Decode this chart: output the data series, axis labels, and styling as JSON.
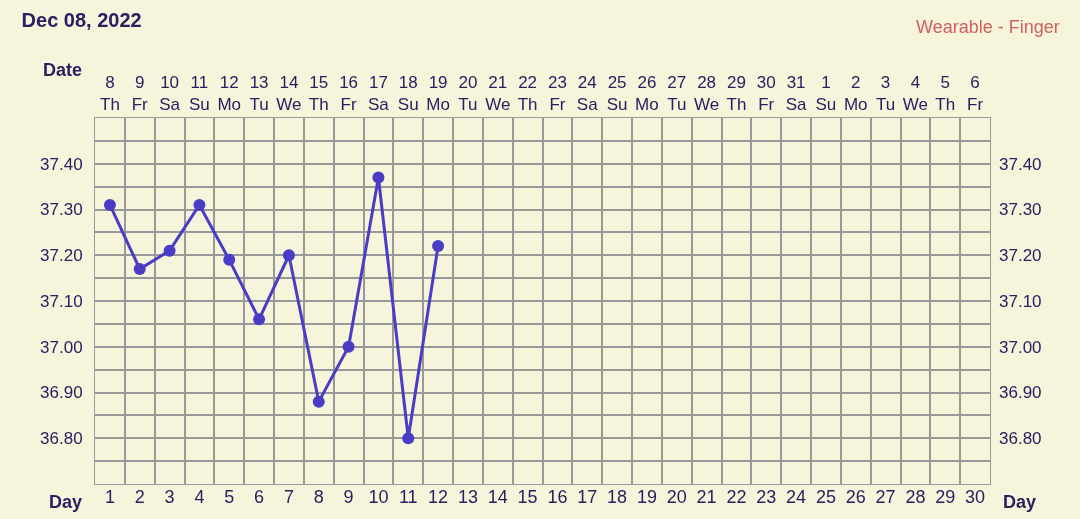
{
  "chart_data": {
    "type": "line",
    "title": "Dec 08, 2022",
    "annotations": [
      "Wearable - Finger",
      "Date",
      "Day",
      "Day"
    ],
    "categories": [
      "8\nTh",
      "9\nFr",
      "10\nSa",
      "11\nSu",
      "12\nMo",
      "13\nTu",
      "14\nWe",
      "15\nTh",
      "16\nFr",
      "17\nSa",
      "18\nSu",
      "19\nMo",
      "20\nTu",
      "21\nWe",
      "22\nTh",
      "23\nFr",
      "24\nSa",
      "25\nSu",
      "26\nMo",
      "27\nTu",
      "28\nWe",
      "29\nTh",
      "30\nFr",
      "31\nSa",
      "1\nSu",
      "2\nMo",
      "3\nTu",
      "4\nWe",
      "5\nTh",
      "6\nFr"
    ],
    "series": [
      {
        "color": "#4a3cc4",
        "values": [
          37.31,
          37.17,
          37.21,
          37.31,
          37.19,
          37.06,
          37.2,
          36.88,
          37.0,
          37.37,
          36.8,
          37.22,
          null,
          null,
          null,
          null,
          null,
          null,
          null,
          null,
          null,
          null,
          null,
          null,
          null,
          null,
          null,
          null,
          null,
          null
        ]
      }
    ],
    "x2lim": [
      0.5,
      30.5
    ],
    "x2ticks": [
      1,
      2,
      3,
      4,
      5,
      6,
      7,
      8,
      9,
      10,
      11,
      12,
      13,
      14,
      15,
      16,
      17,
      18,
      19,
      20,
      21,
      22,
      23,
      24,
      25,
      26,
      27,
      28,
      29,
      30
    ],
    "ylim": [
      36.7,
      37.5
    ],
    "yticks": [
      {
        "value": 36.75,
        "label": null
      },
      {
        "value": 36.8,
        "label": "36.80"
      },
      {
        "value": 36.85,
        "label": null
      },
      {
        "value": 36.9,
        "label": "36.90"
      },
      {
        "value": 36.95,
        "label": null
      },
      {
        "value": 37.0,
        "label": "37.00"
      },
      {
        "value": 37.05,
        "label": null
      },
      {
        "value": 37.1,
        "label": "37.10"
      },
      {
        "value": 37.15,
        "label": null
      },
      {
        "value": 37.2,
        "label": "37.20"
      },
      {
        "value": 37.25,
        "label": null
      },
      {
        "value": 37.3,
        "label": "37.30"
      },
      {
        "value": 37.35,
        "label": null
      },
      {
        "value": 37.4,
        "label": "37.40"
      },
      {
        "value": 37.45,
        "label": null
      }
    ],
    "y2lim": [
      36.7,
      37.5
    ],
    "y2ticks": [
      {
        "value": 36.75,
        "label": null
      },
      {
        "value": 36.8,
        "label": "36.80"
      },
      {
        "value": 36.85,
        "label": null
      },
      {
        "value": 36.9,
        "label": "36.90"
      },
      {
        "value": 36.95,
        "label": null
      },
      {
        "value": 37.0,
        "label": "37.00"
      },
      {
        "value": 37.05,
        "label": null
      },
      {
        "value": 37.1,
        "label": "37.10"
      },
      {
        "value": 37.15,
        "label": null
      },
      {
        "value": 37.2,
        "label": "37.20"
      },
      {
        "value": 37.25,
        "label": null
      },
      {
        "value": 37.3,
        "label": "37.30"
      },
      {
        "value": 37.35,
        "label": null
      },
      {
        "value": 37.4,
        "label": "37.40"
      },
      {
        "value": 37.45,
        "label": null
      }
    ],
    "grid": true,
    "marker": "circle",
    "line_style": "solid"
  }
}
